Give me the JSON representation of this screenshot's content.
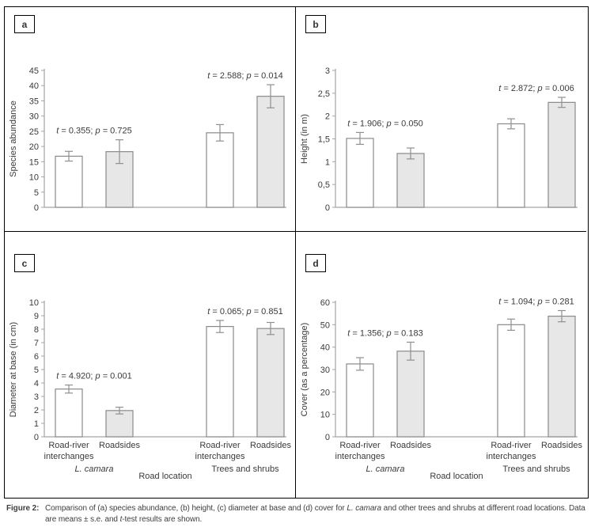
{
  "caption": {
    "label": "Figure 2:",
    "parts": [
      {
        "text": "Comparison of (a) species abundance, (b) height, (c) diameter at base and (d) cover for ",
        "italic": false
      },
      {
        "text": "L. camara",
        "italic": true
      },
      {
        "text": " and other trees and shrubs at different road locations. Data are means ± s.e. and ",
        "italic": false
      },
      {
        "text": "t",
        "italic": true
      },
      {
        "text": "-test results are shown.",
        "italic": false
      }
    ]
  },
  "styles": {
    "bar_fill_white": "#ffffff",
    "bar_fill_gray": "#e7e7e7",
    "bar_border": "#8a8a8a",
    "error_color": "#8f8f8f",
    "axis_color": "#a3a3a3",
    "text_color": "#3a3a3a",
    "annotation_color": "#2b2b2b",
    "caption_color": "#3f3f3f"
  },
  "chart_data": [
    {
      "panel": "a",
      "type": "bar",
      "ylabel": "Species abundance",
      "ylim": [
        0,
        45
      ],
      "yticks": [
        {
          "v": 0,
          "label": "0"
        },
        {
          "v": 5,
          "label": "5"
        },
        {
          "v": 10,
          "label": "10"
        },
        {
          "v": 15,
          "label": "15"
        },
        {
          "v": 20,
          "label": "20"
        },
        {
          "v": 25,
          "label": "25"
        },
        {
          "v": 30,
          "label": "30"
        },
        {
          "v": 35,
          "label": "35"
        },
        {
          "v": 40,
          "label": "40"
        },
        {
          "v": 45,
          "label": "45"
        }
      ],
      "values": [
        16.8,
        18.3,
        24.5,
        36.5
      ],
      "errors": [
        1.6,
        3.9,
        2.7,
        3.8
      ],
      "fills": [
        "white",
        "gray",
        "white",
        "gray"
      ],
      "annotations": [
        {
          "t": "0.355",
          "p": "0.725"
        },
        {
          "t": "2.588",
          "p": "0.014"
        }
      ]
    },
    {
      "panel": "b",
      "type": "bar",
      "ylabel": "Height (in m)",
      "ylim": [
        0,
        3
      ],
      "yticks": [
        {
          "v": 0,
          "label": "0"
        },
        {
          "v": 0.5,
          "label": "0,5"
        },
        {
          "v": 1,
          "label": "1"
        },
        {
          "v": 1.5,
          "label": "1,5"
        },
        {
          "v": 2,
          "label": "2"
        },
        {
          "v": 2.5,
          "label": "2,5"
        },
        {
          "v": 3,
          "label": "3"
        }
      ],
      "values": [
        1.51,
        1.18,
        1.83,
        2.3
      ],
      "errors": [
        0.13,
        0.12,
        0.11,
        0.11
      ],
      "fills": [
        "white",
        "gray",
        "white",
        "gray"
      ],
      "annotations": [
        {
          "t": "1.906",
          "p": "0.050"
        },
        {
          "t": "2.872",
          "p": "0.006"
        }
      ]
    },
    {
      "panel": "c",
      "type": "bar",
      "ylabel": "Diameter at base (in cm)",
      "ylim": [
        0,
        10
      ],
      "yticks": [
        {
          "v": 0,
          "label": "0"
        },
        {
          "v": 1,
          "label": "1"
        },
        {
          "v": 2,
          "label": "2"
        },
        {
          "v": 3,
          "label": "3"
        },
        {
          "v": 4,
          "label": "4"
        },
        {
          "v": 5,
          "label": "5"
        },
        {
          "v": 6,
          "label": "6"
        },
        {
          "v": 7,
          "label": "7"
        },
        {
          "v": 8,
          "label": "8"
        },
        {
          "v": 9,
          "label": "9"
        },
        {
          "v": 10,
          "label": "10"
        }
      ],
      "values": [
        3.55,
        1.95,
        8.2,
        8.05
      ],
      "errors": [
        0.3,
        0.25,
        0.45,
        0.45
      ],
      "fills": [
        "white",
        "gray",
        "white",
        "gray"
      ],
      "annotations": [
        {
          "t": "4.920",
          "p": "0.001"
        },
        {
          "t": "0.065",
          "p": "0.851"
        }
      ],
      "categories": [
        "Road-river interchanges",
        "Roadsides",
        "Road-river interchanges",
        "Roadsides"
      ],
      "group_labels": [
        {
          "text": "L. camara",
          "italic": true
        },
        {
          "text": "Trees and shrubs",
          "italic": false
        }
      ],
      "xlabel": "Road location"
    },
    {
      "panel": "d",
      "type": "bar",
      "ylabel": "Cover (as a percentage)",
      "ylim": [
        0,
        60
      ],
      "yticks": [
        {
          "v": 0,
          "label": "0"
        },
        {
          "v": 10,
          "label": "10"
        },
        {
          "v": 20,
          "label": "20"
        },
        {
          "v": 30,
          "label": "30"
        },
        {
          "v": 40,
          "label": "40"
        },
        {
          "v": 50,
          "label": "50"
        },
        {
          "v": 60,
          "label": "60"
        }
      ],
      "values": [
        32.5,
        38.2,
        50,
        53.8
      ],
      "errors": [
        2.8,
        4,
        2.5,
        2.5
      ],
      "fills": [
        "white",
        "gray",
        "white",
        "gray"
      ],
      "annotations": [
        {
          "t": "1.356",
          "p": "0.183"
        },
        {
          "t": "1.094",
          "p": "0.281"
        }
      ],
      "categories": [
        "Road-river interchanges",
        "Roadsides",
        "Road-river interchanges",
        "Roadsides"
      ],
      "group_labels": [
        {
          "text": "L. camara",
          "italic": true
        },
        {
          "text": "Trees and shrubs",
          "italic": false
        }
      ],
      "xlabel": "Road location"
    }
  ]
}
